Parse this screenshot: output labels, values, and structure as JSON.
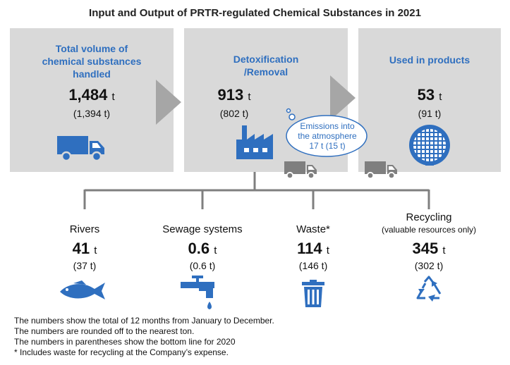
{
  "title": "Input and Output of PRTR-regulated Chemical Substances in 2021",
  "unit": "t",
  "colors": {
    "panel": "#d9d9d9",
    "accent": "#2f6fbf",
    "arrow": "#a6a6a6",
    "line": "#7f7f7f"
  },
  "panels": [
    {
      "title_lines": [
        "Total volume of",
        "chemical substances",
        "handled"
      ],
      "value": "1,484",
      "previous": "(1,394 t)",
      "icon": "truck-icon"
    },
    {
      "title_lines": [
        "Detoxification",
        "/Removal"
      ],
      "value": "913",
      "previous": "(802 t)",
      "icon": "factory-icon"
    },
    {
      "title_lines": [
        "Used in products"
      ],
      "value": "53",
      "previous": "(91 t)",
      "icon": "wafer-icon"
    }
  ],
  "emission": {
    "lines": [
      "Emissions into",
      "the atmosphere",
      "17 t (15 t)"
    ]
  },
  "outputs": [
    {
      "label": "Rivers",
      "value": "41",
      "previous": "(37 t)",
      "icon": "fish-icon"
    },
    {
      "label": "Sewage systems",
      "value": "0.6",
      "previous": "(0.6 t)",
      "icon": "faucet-icon"
    },
    {
      "label": "Waste*",
      "value": "114",
      "previous": "(146 t)",
      "icon": "trash-icon"
    },
    {
      "label": "Recycling",
      "sublabel": "(valuable resources only)",
      "value": "345",
      "previous": "(302 t)",
      "icon": "recycle-icon"
    }
  ],
  "notes": [
    "The numbers show the total of 12 months from January to December.",
    "The numbers are rounded off to the nearest ton.",
    "The numbers in parentheses show the bottom line for 2020",
    "* Includes waste for recycling at the Company’s expense."
  ]
}
